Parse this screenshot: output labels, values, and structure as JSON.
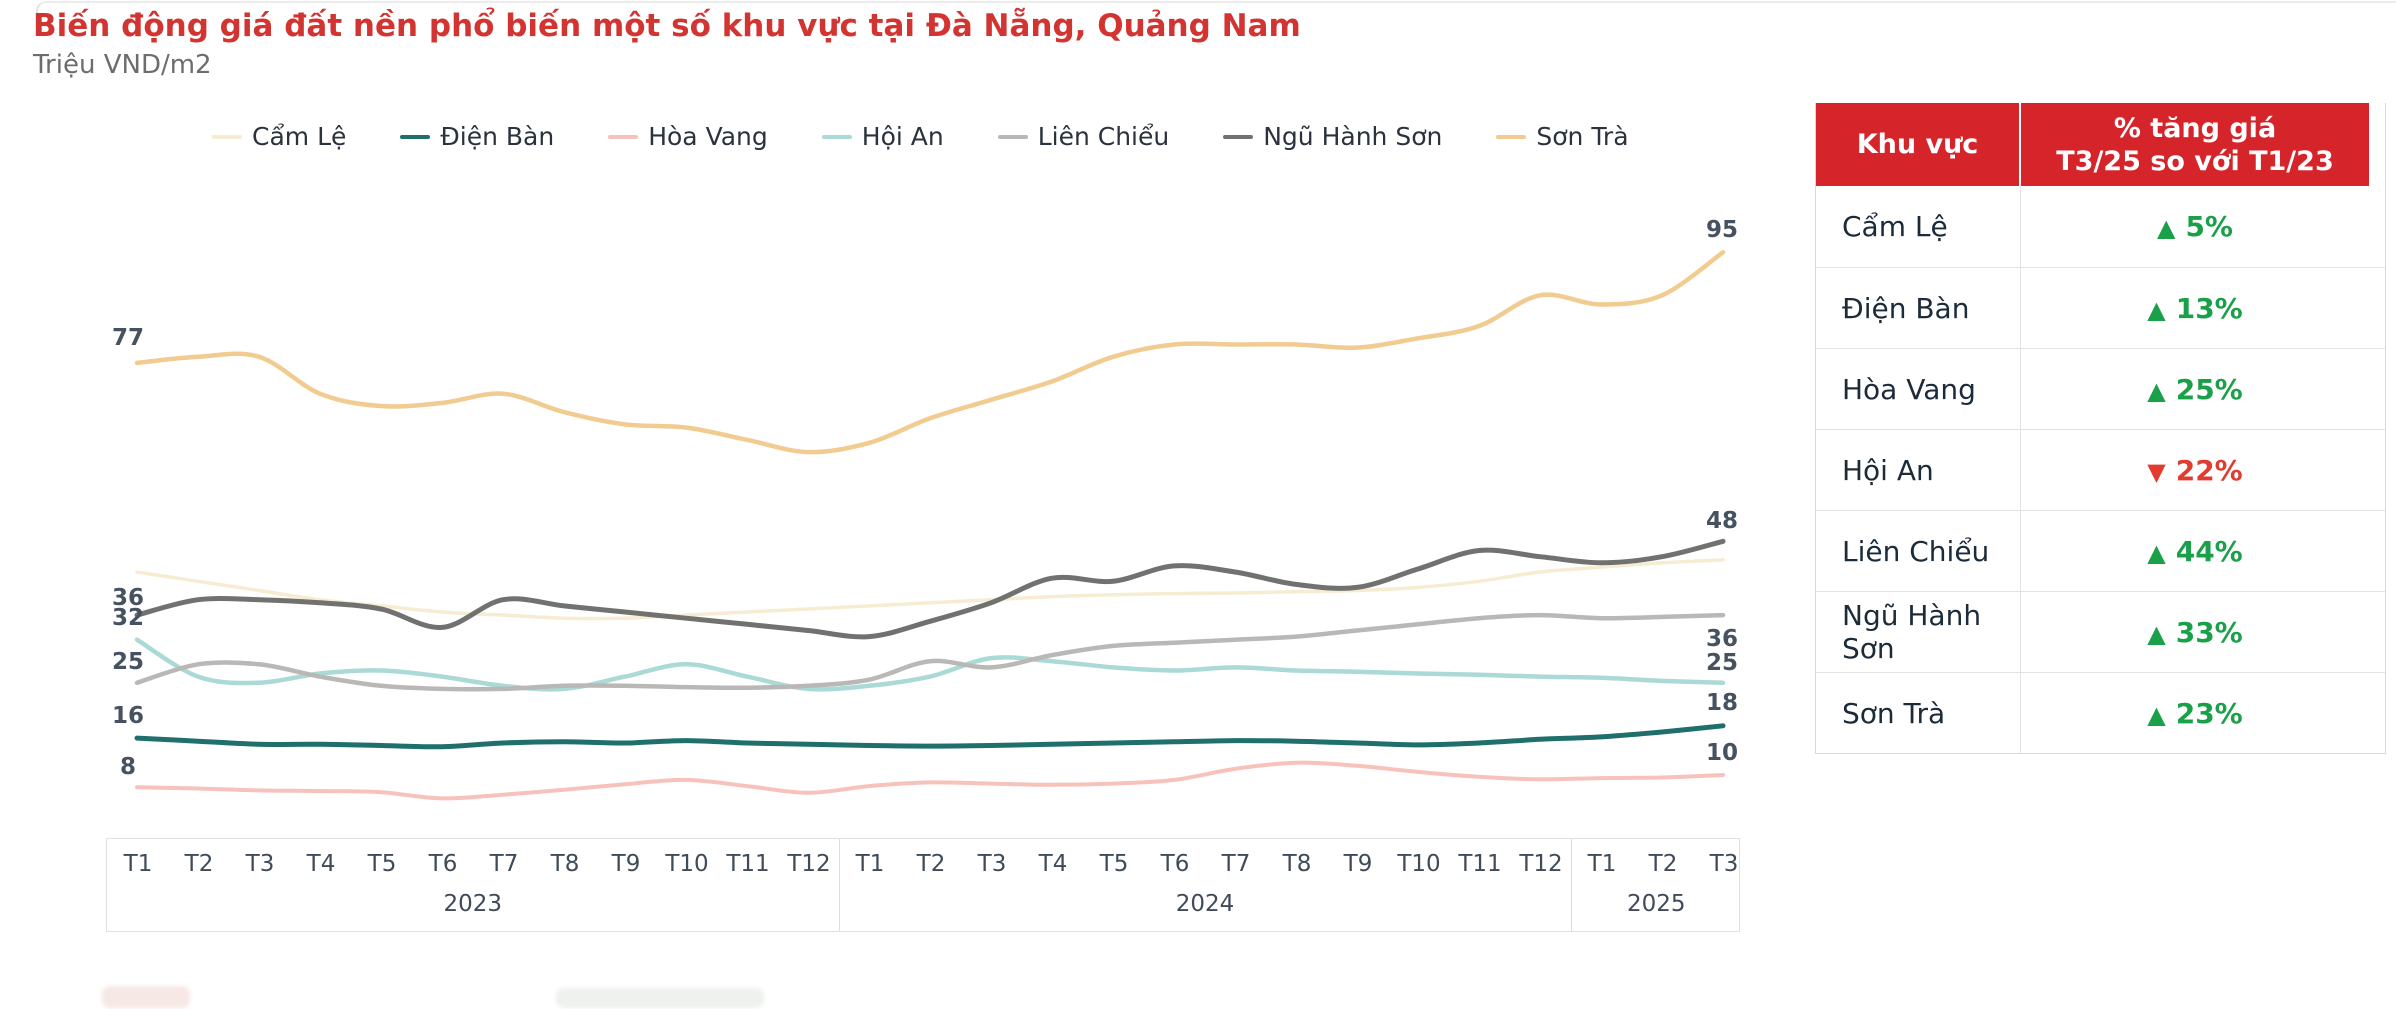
{
  "header": {
    "title": "Biến động giá đất nền phổ biến một số khu vực tại Đà Nẵng, Quảng Nam",
    "subtitle": "Triệu VND/m2"
  },
  "chart_data": {
    "type": "line",
    "title": "Biến động giá đất nền phổ biến một số khu vực tại Đà Nẵng, Quảng Nam",
    "ylabel": "Triệu VND/m2",
    "xlabel": "",
    "ylim": [
      5,
      100
    ],
    "grid": false,
    "legend_position": "top",
    "x_groups": [
      {
        "year": "2023",
        "months": [
          "T1",
          "T2",
          "T3",
          "T4",
          "T5",
          "T6",
          "T7",
          "T8",
          "T9",
          "T10",
          "T11",
          "T12"
        ]
      },
      {
        "year": "2024",
        "months": [
          "T1",
          "T2",
          "T3",
          "T4",
          "T5",
          "T6",
          "T7",
          "T8",
          "T9",
          "T10",
          "T11",
          "T12"
        ]
      },
      {
        "year": "2025",
        "months": [
          "T1",
          "T2",
          "T3"
        ]
      }
    ],
    "series": [
      {
        "name": "Cẩm Lệ",
        "color": "#f6ecd2",
        "start_label": null,
        "end_label": null,
        "values": [
          43,
          41.5,
          40,
          38.5,
          37.5,
          36.5,
          36,
          35.5,
          35.5,
          36,
          36.5,
          37,
          37.5,
          38,
          38.5,
          39,
          39.3,
          39.5,
          39.6,
          39.8,
          40,
          40.5,
          41.5,
          43,
          43.8,
          44.5,
          45
        ]
      },
      {
        "name": "Điện Bàn",
        "color": "#1f6f6c",
        "start_label": "16",
        "end_label": "18",
        "values": [
          16,
          15.5,
          15,
          15,
          14.8,
          14.6,
          15.2,
          15.4,
          15.2,
          15.6,
          15.2,
          15,
          14.8,
          14.7,
          14.8,
          15,
          15.2,
          15.4,
          15.6,
          15.5,
          15.2,
          14.9,
          15.2,
          15.8,
          16.2,
          17,
          18
        ]
      },
      {
        "name": "Hòa Vang",
        "color": "#f6c2bb",
        "start_label": "8",
        "end_label": "10",
        "values": [
          8,
          7.8,
          7.5,
          7.4,
          7.2,
          6.2,
          6.8,
          7.6,
          8.5,
          9.2,
          8.2,
          7.1,
          8.2,
          8.8,
          8.6,
          8.4,
          8.6,
          9.2,
          11,
          12,
          11.5,
          10.5,
          9.7,
          9.3,
          9.5,
          9.6,
          10
        ]
      },
      {
        "name": "Hội An",
        "color": "#abd9d5",
        "start_label": "32",
        "end_label": "25",
        "values": [
          32,
          26,
          25,
          26.5,
          27,
          26,
          24.5,
          24,
          26,
          28,
          26,
          24,
          24.5,
          26,
          29,
          28.5,
          27.5,
          27,
          27.5,
          27,
          26.8,
          26.5,
          26.3,
          26,
          25.8,
          25.3,
          25
        ]
      },
      {
        "name": "Liên Chiểu",
        "color": "#b9b8b6",
        "start_label": "25",
        "end_label": "36",
        "values": [
          25,
          28,
          28,
          26,
          24.5,
          24,
          24,
          24.5,
          24.5,
          24.3,
          24.2,
          24.5,
          25.5,
          28.5,
          27.5,
          29.5,
          31,
          31.5,
          32,
          32.5,
          33.5,
          34.5,
          35.5,
          36,
          35.5,
          35.7,
          36
        ]
      },
      {
        "name": "Ngũ Hành Sơn",
        "color": "#71716f",
        "start_label": "36",
        "end_label": "48",
        "values": [
          36,
          38.5,
          38.5,
          38,
          37,
          34,
          38.5,
          37.5,
          36.5,
          35.5,
          34.5,
          33.5,
          32.5,
          35,
          38,
          42,
          41.5,
          44,
          43,
          41,
          40.5,
          43.5,
          46.5,
          45.5,
          44.5,
          45.5,
          48
        ]
      },
      {
        "name": "Sơn Trà",
        "color": "#f1cb90",
        "start_label": "77",
        "end_label": "95",
        "values": [
          77,
          78,
          78,
          72,
          70,
          70.5,
          72,
          69,
          67,
          66.5,
          64.5,
          62.5,
          64,
          68,
          71,
          74,
          78,
          80,
          80,
          80,
          79.5,
          81,
          83,
          88,
          86.5,
          88,
          95
        ]
      }
    ]
  },
  "table": {
    "header": {
      "col1": "Khu vực",
      "col2_line1": "% tăng giá",
      "col2_line2": "T3/25 so với T1/23"
    },
    "rows": [
      {
        "area": "Cẩm Lệ",
        "arrow": "▲",
        "value": "5%",
        "direction": "up"
      },
      {
        "area": "Điện Bàn",
        "arrow": "▲",
        "value": "13%",
        "direction": "up"
      },
      {
        "area": "Hòa Vang",
        "arrow": "▲",
        "value": "25%",
        "direction": "up"
      },
      {
        "area": "Hội An",
        "arrow": "▼",
        "value": "22%",
        "direction": "down"
      },
      {
        "area": "Liên Chiểu",
        "arrow": "▲",
        "value": "44%",
        "direction": "up"
      },
      {
        "area": "Ngũ Hành Sơn",
        "arrow": "▲",
        "value": "33%",
        "direction": "up"
      },
      {
        "area": "Sơn Trà",
        "arrow": "▲",
        "value": "23%",
        "direction": "up"
      }
    ]
  },
  "colors": {
    "title": "#d23431",
    "table_header_bg": "#d6242b",
    "up": "#1ba04a",
    "down": "#e23b30"
  }
}
